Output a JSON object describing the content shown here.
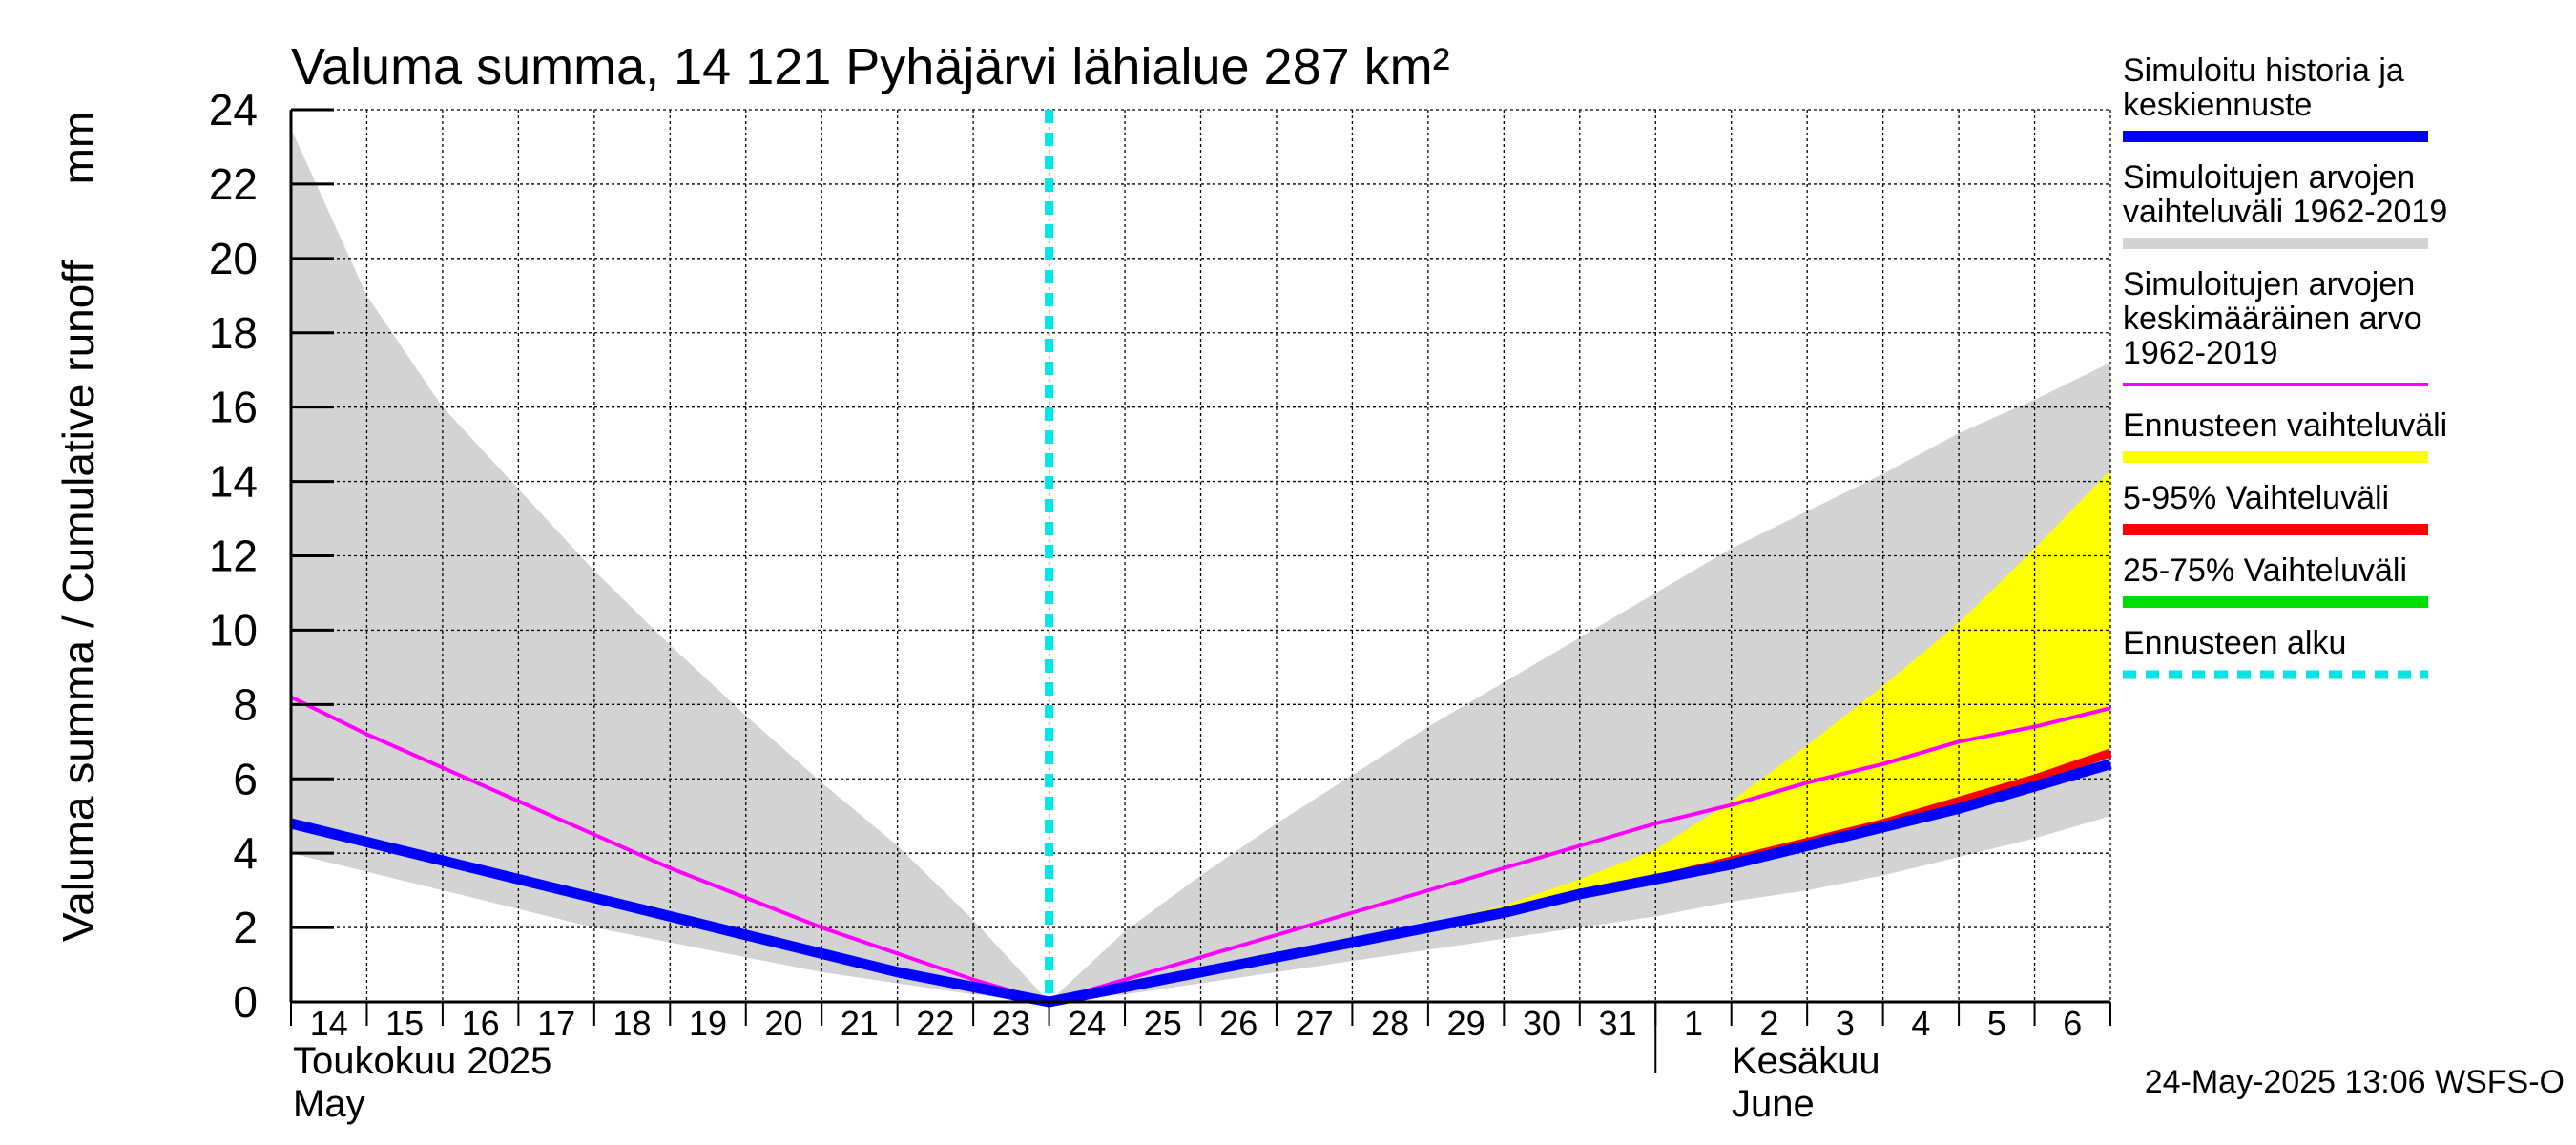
{
  "chart_data": {
    "type": "area",
    "title": "Valuma summa, 14 121 Pyhäjärvi lähialue 287 km²",
    "ylabel": "Valuma summa / Cumulative runoff",
    "yunit": "mm",
    "ylim": [
      0,
      24
    ],
    "yticks": [
      0,
      2,
      4,
      6,
      8,
      10,
      12,
      14,
      16,
      18,
      20,
      22,
      24
    ],
    "xlim": [
      0,
      24
    ],
    "x_day_labels": [
      "14",
      "15",
      "16",
      "17",
      "18",
      "19",
      "20",
      "21",
      "22",
      "23",
      "24",
      "25",
      "26",
      "27",
      "28",
      "29",
      "30",
      "31",
      "1",
      "2",
      "3",
      "4",
      "5",
      "6"
    ],
    "x_month_labels": {
      "may_fi": "Toukokuu  2025",
      "may_en": "May",
      "june_fi": "Kesäkuu",
      "june_en": "June"
    },
    "grid": true,
    "legend_position": "right",
    "forecast_start_x": 10,
    "footer": "24-May-2025 13:06 WSFS-O",
    "series": [
      {
        "name": "Simuloitujen arvojen vaihteluväli 1962-2019",
        "kind": "band",
        "color": "#d3d3d3",
        "x": [
          0,
          1,
          2,
          3,
          4,
          5,
          6,
          7,
          8,
          9,
          10,
          11,
          12,
          13,
          14,
          15,
          16,
          17,
          18,
          19,
          20,
          21,
          22,
          23,
          24
        ],
        "upper": [
          23.5,
          19.0,
          16.0,
          13.8,
          11.6,
          9.6,
          7.7,
          5.9,
          4.2,
          2.2,
          0.0,
          1.9,
          3.4,
          4.8,
          6.1,
          7.4,
          8.6,
          9.8,
          11.0,
          12.2,
          13.2,
          14.2,
          15.3,
          16.2,
          17.2
        ],
        "lower": [
          4.0,
          3.5,
          3.0,
          2.5,
          2.0,
          1.6,
          1.2,
          0.8,
          0.5,
          0.2,
          0.0,
          0.2,
          0.5,
          0.8,
          1.1,
          1.4,
          1.7,
          2.0,
          2.3,
          2.7,
          3.0,
          3.4,
          3.9,
          4.4,
          5.0
        ]
      },
      {
        "name": "Ennusteen vaihteluväli",
        "kind": "band",
        "color": "#ffff00",
        "x": [
          10,
          11,
          12,
          13,
          14,
          15,
          16,
          17,
          18,
          19,
          20,
          21,
          22,
          23,
          24
        ],
        "upper": [
          0.0,
          0.4,
          0.8,
          1.2,
          1.6,
          2.1,
          2.6,
          3.3,
          4.1,
          5.4,
          6.9,
          8.5,
          10.2,
          12.2,
          14.3
        ],
        "lower": [
          0.0,
          0.4,
          0.8,
          1.2,
          1.6,
          2.0,
          2.4,
          2.9,
          3.3,
          3.8,
          4.3,
          4.8,
          5.4,
          6.0,
          6.7
        ]
      },
      {
        "name": "5-95% Vaihteluväli",
        "kind": "line",
        "color": "#ff0000",
        "x": [
          10,
          11,
          12,
          13,
          14,
          15,
          16,
          17,
          18,
          19,
          20,
          21,
          22,
          23,
          24
        ],
        "values": [
          0.0,
          0.4,
          0.8,
          1.2,
          1.6,
          2.0,
          2.4,
          2.9,
          3.3,
          3.8,
          4.3,
          4.8,
          5.4,
          6.0,
          6.7
        ]
      },
      {
        "name": "25-75% Vaihteluväli",
        "kind": "line",
        "color": "#00dd00",
        "x": [
          10,
          11,
          12,
          13,
          14,
          15,
          16,
          17,
          18,
          19,
          20,
          21,
          22,
          23,
          24
        ],
        "values": [
          0.0,
          0.4,
          0.8,
          1.2,
          1.6,
          2.0,
          2.4,
          2.9,
          3.3,
          3.7,
          4.2,
          4.7,
          5.2,
          5.8,
          6.4
        ]
      },
      {
        "name": "Simuloitujen arvojen keskimääräinen arvo 1962-2019",
        "kind": "line",
        "color": "#ff00ff",
        "x": [
          0,
          1,
          2,
          3,
          4,
          5,
          6,
          7,
          8,
          9,
          10,
          11,
          12,
          13,
          14,
          15,
          16,
          17,
          18,
          19,
          20,
          21,
          22,
          23,
          24
        ],
        "values": [
          8.2,
          7.2,
          6.3,
          5.4,
          4.5,
          3.6,
          2.8,
          2.0,
          1.3,
          0.6,
          0.0,
          0.6,
          1.2,
          1.8,
          2.4,
          3.0,
          3.6,
          4.2,
          4.8,
          5.3,
          5.9,
          6.4,
          7.0,
          7.4,
          7.9
        ]
      },
      {
        "name": "Simuloitu historia ja keskiennuste",
        "kind": "line",
        "color": "#0000ff",
        "x": [
          0,
          1,
          2,
          3,
          4,
          5,
          6,
          7,
          8,
          9,
          10,
          11,
          12,
          13,
          14,
          15,
          16,
          17,
          18,
          19,
          20,
          21,
          22,
          23,
          24
        ],
        "values": [
          4.8,
          4.3,
          3.8,
          3.3,
          2.8,
          2.3,
          1.8,
          1.3,
          0.8,
          0.4,
          0.0,
          0.4,
          0.8,
          1.2,
          1.6,
          2.0,
          2.4,
          2.9,
          3.3,
          3.7,
          4.2,
          4.7,
          5.2,
          5.8,
          6.4
        ]
      }
    ],
    "legend": [
      {
        "lines": [
          "Simuloitu historia ja",
          "keskiennuste"
        ],
        "color": "#0000ff",
        "style": "solid"
      },
      {
        "lines": [
          "Simuloitujen arvojen",
          "vaihteluväli 1962-2019"
        ],
        "color": "#d3d3d3",
        "style": "solid"
      },
      {
        "lines": [
          "Simuloitujen arvojen",
          "keskimääräinen arvo",
          "   1962-2019"
        ],
        "color": "#ff00ff",
        "style": "thin"
      },
      {
        "lines": [
          "Ennusteen vaihteluväli"
        ],
        "color": "#ffff00",
        "style": "solid"
      },
      {
        "lines": [
          "5-95% Vaihteluväli"
        ],
        "color": "#ff0000",
        "style": "solid"
      },
      {
        "lines": [
          "25-75% Vaihteluväli"
        ],
        "color": "#00dd00",
        "style": "solid"
      },
      {
        "lines": [
          "Ennusteen alku"
        ],
        "color": "#00e5e5",
        "style": "dashed"
      }
    ]
  }
}
